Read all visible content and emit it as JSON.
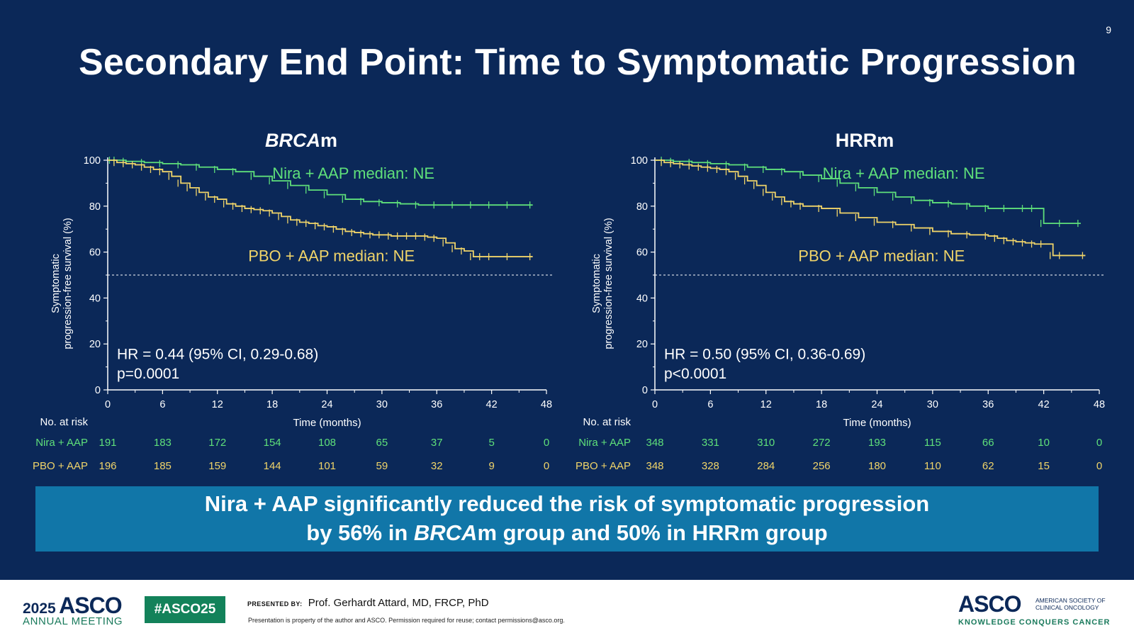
{
  "page_number": "9",
  "title": "Secondary End Point: Time to Symptomatic Progression",
  "colors": {
    "background": "#0b2858",
    "nira": "#5fe07a",
    "pbo": "#f0d469",
    "banner": "#1176a8",
    "white": "#ffffff"
  },
  "banner": {
    "line1": "Nira + AAP significantly reduced the risk of symptomatic progression",
    "line2_a": "by 56% in ",
    "line2_b": "BRCA",
    "line2_c": "m group and 50% in HRRm group"
  },
  "footer": {
    "year": "2025",
    "asco": "ASCO",
    "meeting": "ANNUAL MEETING",
    "hashtag": "#ASCO25",
    "presented_label": "PRESENTED BY:",
    "presenter": "Prof. Gerhardt Attard, MD, FRCP, PhD",
    "disclaimer": "Presentation is property of the author and ASCO. Permission required for reuse; contact permissions@asco.org.",
    "logo_right": "ASCO",
    "society_line1": "AMERICAN SOCIETY OF",
    "society_line2": "CLINICAL ONCOLOGY",
    "tagline": "KNOWLEDGE CONQUERS CANCER"
  },
  "chart_data": [
    {
      "type": "line",
      "title_italic": "BRCA",
      "title_rest": "m",
      "ylabel_line1": "Symptomatic",
      "ylabel_line2": "progression-free survival (%)",
      "xlabel": "Time (months)",
      "xlim": [
        0,
        48
      ],
      "ylim": [
        0,
        100
      ],
      "xticks": [
        0,
        6,
        12,
        18,
        24,
        30,
        36,
        42,
        48
      ],
      "yticks": [
        0,
        20,
        40,
        60,
        80,
        100
      ],
      "reference_line": 50,
      "hr_line1": "HR = 0.44 (95% CI, 0.29-0.68)",
      "hr_line2": "p=0.0001",
      "risk_table_title": "No. at risk",
      "series": [
        {
          "name": "Nira + AAP",
          "color": "#5fe07a",
          "median_label": "Nira + AAP median: NE",
          "x": [
            0,
            0.5,
            1,
            2,
            4,
            6,
            8,
            10,
            12,
            14,
            16,
            18,
            20,
            22,
            24,
            26,
            28,
            30,
            32,
            34,
            36,
            38,
            40,
            42,
            44,
            46.5
          ],
          "y": [
            100,
            100,
            100,
            99.5,
            99,
            98.5,
            98,
            97,
            96,
            95,
            93,
            91,
            89,
            87,
            85,
            83,
            82,
            81.5,
            81,
            80.5,
            80.5,
            80.5,
            80.5,
            80.5,
            80.5,
            80.5
          ],
          "at_risk": [
            191,
            183,
            172,
            154,
            108,
            65,
            37,
            5,
            0
          ]
        },
        {
          "name": "PBO + AAP",
          "color": "#f0d469",
          "median_label": "PBO + AAP median: NE",
          "x": [
            0,
            1,
            2,
            3,
            4,
            5,
            6,
            7,
            8,
            9,
            10,
            11,
            12,
            13,
            14,
            15,
            16,
            17,
            18,
            19,
            20,
            21,
            22,
            23,
            24,
            25,
            26,
            27,
            28,
            29,
            30,
            31,
            32,
            33,
            34,
            35,
            36,
            37,
            38,
            39,
            40,
            41,
            42,
            44,
            46.5
          ],
          "y": [
            100,
            99,
            98.5,
            98,
            97,
            96,
            95,
            93,
            90,
            88,
            86,
            84,
            83,
            81,
            80,
            79,
            78.5,
            78,
            77,
            75.5,
            74,
            73,
            72.5,
            71.5,
            71,
            70,
            69,
            68.5,
            68,
            67.5,
            67.5,
            67,
            67,
            67,
            67,
            66.5,
            66,
            64,
            61.5,
            60.5,
            58,
            58,
            58,
            58,
            58
          ],
          "at_risk": [
            196,
            185,
            159,
            144,
            101,
            59,
            32,
            9,
            0
          ]
        }
      ]
    },
    {
      "type": "line",
      "title_italic": "",
      "title_rest": "HRRm",
      "ylabel_line1": "Symptomatic",
      "ylabel_line2": "progression-free survival (%)",
      "xlabel": "Time (months)",
      "xlim": [
        0,
        48
      ],
      "ylim": [
        0,
        100
      ],
      "xticks": [
        0,
        6,
        12,
        18,
        24,
        30,
        36,
        42,
        48
      ],
      "yticks": [
        0,
        20,
        40,
        60,
        80,
        100
      ],
      "reference_line": 50,
      "hr_line1": "HR = 0.50 (95% CI, 0.36-0.69)",
      "hr_line2": "p<0.0001",
      "risk_table_title": "No. at risk",
      "series": [
        {
          "name": "Nira + AAP",
          "color": "#5fe07a",
          "median_label": "Nira + AAP median: NE",
          "x": [
            0,
            1,
            2,
            4,
            6,
            8,
            10,
            12,
            14,
            16,
            18,
            20,
            22,
            24,
            26,
            28,
            30,
            32,
            34,
            36,
            38,
            40,
            41,
            42,
            44,
            46
          ],
          "y": [
            100,
            100,
            99.5,
            99,
            98.5,
            98,
            97,
            96,
            95,
            93.5,
            92,
            90,
            88,
            86,
            84,
            82.5,
            81.5,
            81,
            80,
            79,
            79,
            79,
            79,
            72.5,
            72.5,
            72.5
          ],
          "at_risk": [
            348,
            331,
            310,
            272,
            193,
            115,
            66,
            10,
            0
          ]
        },
        {
          "name": "PBO + AAP",
          "color": "#f0d469",
          "median_label": "PBO + AAP median: NE",
          "x": [
            0,
            1,
            2,
            3,
            4,
            5,
            6,
            7,
            8,
            9,
            10,
            11,
            12,
            13,
            14,
            15,
            16,
            18,
            20,
            22,
            24,
            26,
            28,
            30,
            32,
            34,
            36,
            37,
            38,
            39,
            40,
            41,
            42,
            43,
            44,
            46.5
          ],
          "y": [
            100,
            99,
            98.5,
            98,
            97.5,
            97,
            96.5,
            96,
            95,
            93,
            91,
            89,
            86,
            84,
            82,
            81,
            80,
            79,
            77,
            75,
            73,
            72,
            70.5,
            69,
            68,
            67.5,
            67,
            66,
            65,
            64.5,
            64,
            63.5,
            63.5,
            58.5,
            58.5,
            58.5
          ],
          "at_risk": [
            348,
            328,
            284,
            256,
            180,
            110,
            62,
            15,
            0
          ]
        }
      ]
    }
  ]
}
